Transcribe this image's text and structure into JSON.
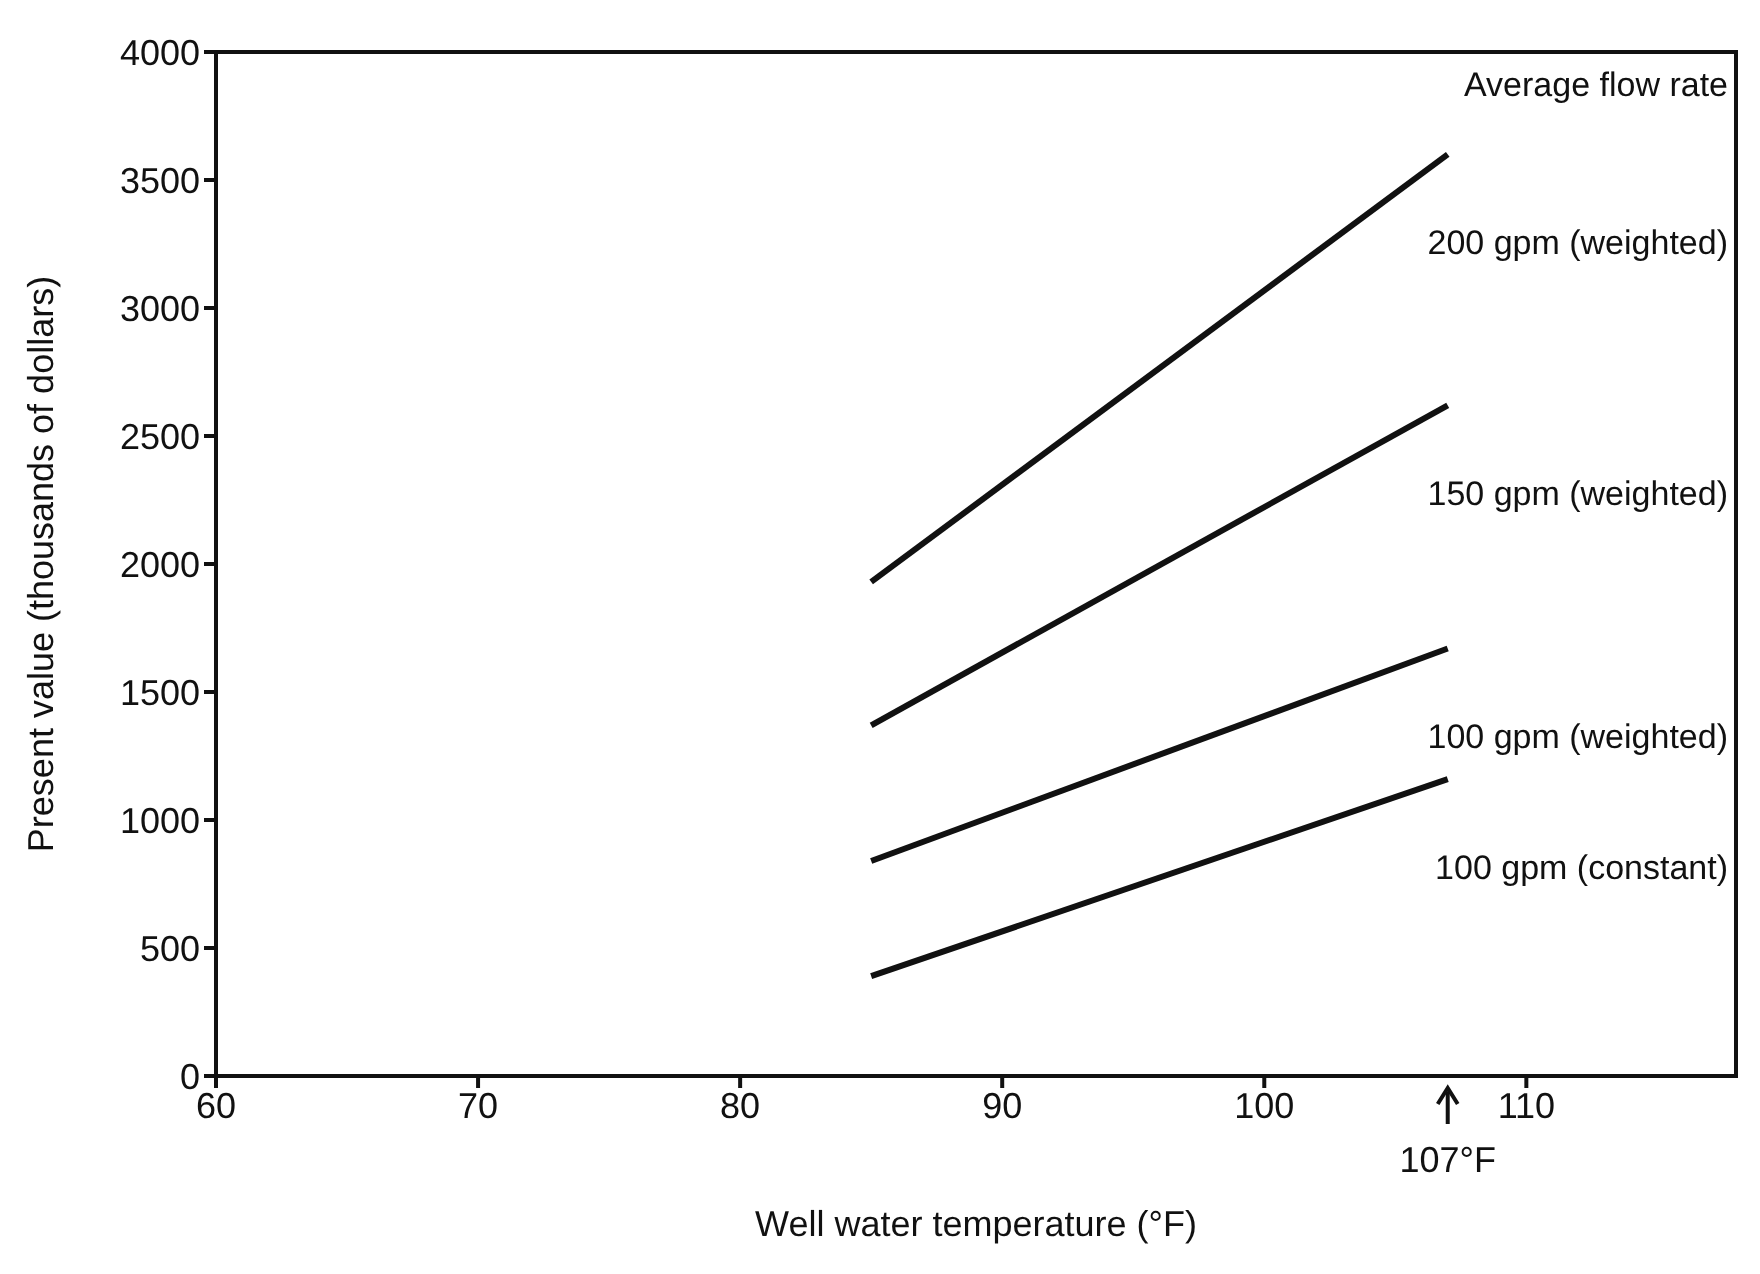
{
  "chart_data": {
    "type": "line",
    "xlabel": "Well water temperature (°F)",
    "ylabel": "Present value (thousands of dollars)",
    "legend_title": "Average flow rate",
    "xlim": [
      60,
      118
    ],
    "xticks": [
      60,
      70,
      80,
      90,
      100,
      110
    ],
    "ylim": [
      0,
      4000
    ],
    "yticks": [
      0,
      500,
      1000,
      1500,
      2000,
      2500,
      3000,
      3500,
      4000
    ],
    "x": [
      85,
      107
    ],
    "marker": "none",
    "line_style": "solid",
    "grid": false,
    "legend": false,
    "series": [
      {
        "name": "200 gpm (weighted)",
        "color": "#111111",
        "values": [
          1930,
          3600
        ]
      },
      {
        "name": "150 gpm (weighted)",
        "color": "#111111",
        "values": [
          1370,
          2620
        ]
      },
      {
        "name": "100 gpm (weighted)",
        "color": "#111111",
        "values": [
          840,
          1670
        ]
      },
      {
        "name": "100 gpm (constant)",
        "color": "#111111",
        "values": [
          390,
          1160
        ]
      }
    ],
    "annotations": [
      "107°F"
    ]
  }
}
